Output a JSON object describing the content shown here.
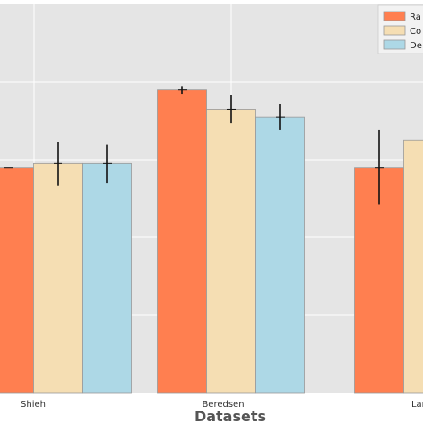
{
  "chart_data": {
    "type": "bar",
    "title": "",
    "xlabel": "Datasets",
    "ylabel": "",
    "categories": [
      "Shieh",
      "Beredsen",
      "Lan"
    ],
    "series": [
      {
        "name": "Ra",
        "color": "#ff7f50",
        "values": [
          2.9,
          3.9,
          2.9
        ],
        "errors": [
          0.0,
          0.05,
          0.48
        ]
      },
      {
        "name": "Co",
        "color": "#f5deb3",
        "values": [
          2.95,
          3.65,
          3.25
        ],
        "errors": [
          0.28,
          0.18,
          0.0
        ]
      },
      {
        "name": "De",
        "color": "#add8e6",
        "values": [
          2.95,
          3.55,
          null
        ],
        "errors": [
          0.25,
          0.17,
          0.0
        ]
      }
    ],
    "ylim": [
      0,
      5
    ],
    "grid": true,
    "legend_position": "top-right",
    "background": "#e5e5e5",
    "gridline_color": "#ffffff"
  }
}
